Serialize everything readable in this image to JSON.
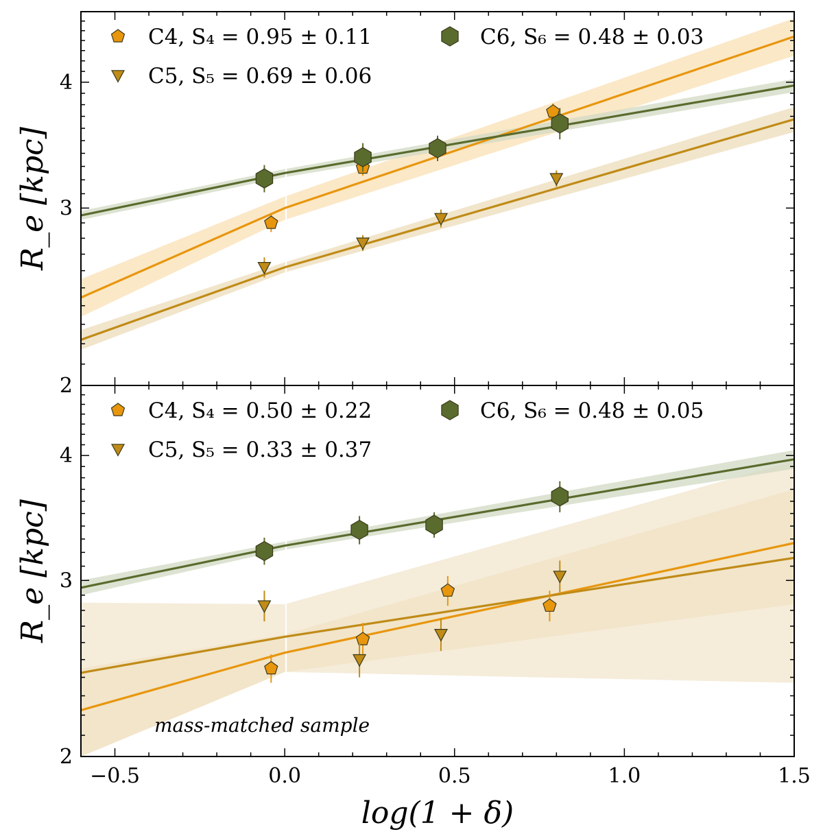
{
  "chart_data": [
    {
      "type": "scatter",
      "panel": "top",
      "xlabel": "log(1 + δ)",
      "ylabel": "R_e [kpc]",
      "xlim": [
        -0.6,
        1.5
      ],
      "ylim": [
        2,
        4.7
      ],
      "yscale": "log",
      "xticks": [
        "−0.5",
        "0.0",
        "0.5",
        "1.0",
        "1.5"
      ],
      "yticks": [
        "2",
        "3",
        "4"
      ],
      "legend_position": "top",
      "annotation": "",
      "series": [
        {
          "name": "C4",
          "legend_label": "C4,  S₄ = 0.95 ± 0.11",
          "color": "#e8960e",
          "marker": "pentagon",
          "x": [
            -0.04,
            0.23,
            0.45,
            0.79
          ],
          "y": [
            2.9,
            3.29,
            3.45,
            3.74
          ],
          "yerr": [
            0.06,
            0.06,
            0.08,
            0.07
          ],
          "fit": {
            "intercept": 3.0,
            "slope": 0.95
          },
          "band": {
            "color": "#f9e0b4",
            "left": [
              2.34,
              2.55
            ],
            "mid": [
              2.92,
              3.08
            ],
            "right": [
              4.25,
              4.63
            ]
          }
        },
        {
          "name": "C5",
          "legend_label": "C5,  S₅ = 0.69 ± 0.06",
          "color": "#c08b17",
          "marker": "triangle-down",
          "x": [
            -0.06,
            0.23,
            0.46,
            0.8
          ],
          "y": [
            2.62,
            2.77,
            2.93,
            3.21
          ],
          "yerr": [
            0.06,
            0.05,
            0.06,
            0.06
          ],
          "fit": {
            "intercept": 2.62,
            "slope": 0.69
          },
          "band": {
            "color": "#ecdcba",
            "left": [
              2.17,
              2.27
            ],
            "mid": [
              2.59,
              2.65
            ],
            "right": [
              3.57,
              3.78
            ]
          }
        },
        {
          "name": "C6",
          "legend_label": "C6,  S₆ = 0.48 ± 0.03",
          "color": "#5a6b2e",
          "marker": "hexagon",
          "x": [
            -0.06,
            0.23,
            0.45,
            0.81
          ],
          "y": [
            3.21,
            3.37,
            3.44,
            3.64
          ],
          "yerr": [
            0.1,
            0.11,
            0.1,
            0.13
          ],
          "fit": {
            "intercept": 3.25,
            "slope": 0.48
          },
          "band": {
            "color": "#d2d9c3",
            "left": [
              2.92,
              2.98
            ],
            "mid": [
              3.22,
              3.28
            ],
            "right": [
              3.91,
              4.03
            ]
          }
        }
      ]
    },
    {
      "type": "scatter",
      "panel": "bottom",
      "xlabel": "log(1 + δ)",
      "ylabel": "R_e [kpc]",
      "xlim": [
        -0.6,
        1.5
      ],
      "ylim": [
        2,
        4.7
      ],
      "yscale": "log",
      "xticks": [
        "−0.5",
        "0.0",
        "0.5",
        "1.0",
        "1.5"
      ],
      "yticks": [
        "2",
        "3",
        "4"
      ],
      "legend_position": "top",
      "annotation": "mass-matched sample",
      "series": [
        {
          "name": "C4",
          "legend_label": "C4,  S₄ = 0.50 ± 0.22",
          "color": "#e8960e",
          "marker": "pentagon",
          "x": [
            -0.04,
            0.23,
            0.48,
            0.78
          ],
          "y": [
            2.45,
            2.62,
            2.93,
            2.83
          ],
          "yerr": [
            0.08,
            0.1,
            0.1,
            0.1
          ],
          "fit": {
            "intercept": 2.55,
            "slope": 0.5
          },
          "band": {
            "color": "#eed7a8",
            "left": [
              2.0,
              2.45
            ],
            "mid": [
              2.43,
              2.65
            ],
            "right": [
              2.84,
              3.7
            ]
          }
        },
        {
          "name": "C5",
          "legend_label": "C5,  S₅ = 0.33 ± 0.37",
          "color": "#c08b17",
          "marker": "triangle-down",
          "x": [
            -0.06,
            0.22,
            0.46,
            0.81
          ],
          "y": [
            2.83,
            2.5,
            2.65,
            3.03
          ],
          "yerr": [
            0.1,
            0.1,
            0.1,
            0.11
          ],
          "fit": {
            "intercept": 2.63,
            "slope": 0.33
          },
          "band": {
            "color": "#f2e5cd",
            "left": [
              2.0,
              2.85
            ],
            "mid": [
              2.43,
              2.84
            ],
            "right": [
              2.37,
              3.95
            ]
          }
        },
        {
          "name": "C6",
          "legend_label": "C6,  S₆ = 0.48 ± 0.05",
          "color": "#5a6b2e",
          "marker": "hexagon",
          "x": [
            -0.06,
            0.22,
            0.44,
            0.81
          ],
          "y": [
            3.21,
            3.37,
            3.41,
            3.64
          ],
          "yerr": [
            0.1,
            0.11,
            0.1,
            0.13
          ],
          "fit": {
            "intercept": 3.25,
            "slope": 0.48
          },
          "band": {
            "color": "#d2d9c3",
            "left": [
              2.9,
              3.0
            ],
            "mid": [
              3.22,
              3.28
            ],
            "right": [
              3.88,
              4.05
            ]
          }
        }
      ]
    }
  ]
}
